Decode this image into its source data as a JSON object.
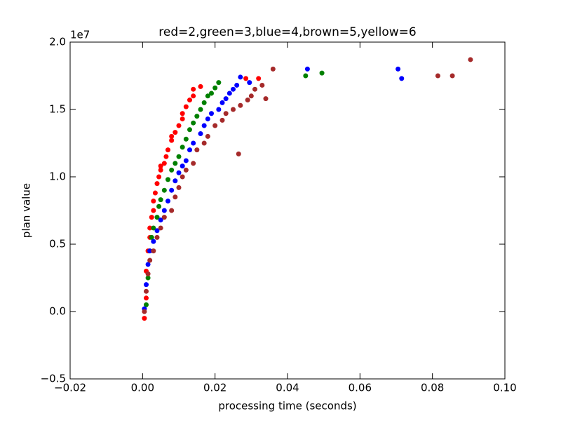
{
  "chart_data": {
    "type": "scatter",
    "title": "red=2,green=3,blue=4,brown=5,yellow=6",
    "x_label": "processing time (seconds)",
    "y_label": "plan value",
    "y_offset_label": "1e7",
    "xlim": [
      -0.02,
      0.1
    ],
    "ylim": [
      -0.5,
      2.0
    ],
    "xticks": [
      {
        "value": -0.02,
        "label": "−0.02"
      },
      {
        "value": 0,
        "label": "0.00"
      },
      0.02,
      0.04,
      0.06,
      0.08,
      {
        "value": 0.1,
        "label": "0.10"
      }
    ],
    "yticks": [
      {
        "value": -0.5,
        "label": "−0.5"
      },
      {
        "value": 0,
        "label": "0.0"
      },
      0.5,
      {
        "value": 1,
        "label": "1.0"
      },
      1.5,
      {
        "value": 2,
        "label": "2.0"
      }
    ],
    "series": [
      {
        "color": "#ff0000",
        "x": [
          0.0005,
          0.001,
          0.001,
          0.0015,
          0.002,
          0.002,
          0.0025,
          0.003,
          0.003,
          0.0035,
          0.004,
          0.0045,
          0.005,
          0.005,
          0.006,
          0.0065,
          0.007,
          0.008,
          0.008,
          0.009,
          0.01,
          0.011,
          0.011,
          0.012,
          0.013,
          0.014,
          0.014,
          0.016,
          0.0285,
          0.032
        ],
        "values": [
          -0.05,
          0.1,
          0.3,
          0.45,
          0.55,
          0.62,
          0.7,
          0.75,
          0.82,
          0.88,
          0.95,
          1.0,
          1.05,
          1.08,
          1.1,
          1.15,
          1.2,
          1.27,
          1.3,
          1.33,
          1.38,
          1.43,
          1.47,
          1.52,
          1.57,
          1.6,
          1.65,
          1.67,
          1.73,
          1.73
        ]
      },
      {
        "color": "#008000",
        "x": [
          0.001,
          0.0015,
          0.002,
          0.0025,
          0.003,
          0.004,
          0.0045,
          0.005,
          0.006,
          0.007,
          0.008,
          0.009,
          0.01,
          0.011,
          0.012,
          0.013,
          0.014,
          0.015,
          0.016,
          0.017,
          0.018,
          0.019,
          0.02,
          0.021,
          0.045,
          0.0495
        ],
        "values": [
          0.05,
          0.25,
          0.45,
          0.55,
          0.62,
          0.7,
          0.78,
          0.83,
          0.9,
          0.98,
          1.05,
          1.1,
          1.15,
          1.22,
          1.28,
          1.35,
          1.4,
          1.45,
          1.5,
          1.55,
          1.6,
          1.62,
          1.66,
          1.7,
          1.75,
          1.77
        ]
      },
      {
        "color": "#0000ff",
        "x": [
          0.0005,
          0.001,
          0.0015,
          0.002,
          0.003,
          0.004,
          0.005,
          0.006,
          0.007,
          0.008,
          0.009,
          0.01,
          0.011,
          0.012,
          0.013,
          0.014,
          0.016,
          0.017,
          0.018,
          0.019,
          0.021,
          0.022,
          0.023,
          0.024,
          0.025,
          0.026,
          0.027,
          0.0295,
          0.0455,
          0.0705,
          0.0715
        ],
        "values": [
          0.02,
          0.2,
          0.35,
          0.45,
          0.52,
          0.6,
          0.68,
          0.75,
          0.82,
          0.9,
          0.97,
          1.03,
          1.08,
          1.12,
          1.2,
          1.25,
          1.32,
          1.38,
          1.43,
          1.47,
          1.5,
          1.55,
          1.58,
          1.62,
          1.65,
          1.68,
          1.74,
          1.7,
          1.8,
          1.8,
          1.73
        ]
      },
      {
        "color": "#a52a2a",
        "x": [
          0.0005,
          0.001,
          0.0015,
          0.002,
          0.003,
          0.004,
          0.005,
          0.006,
          0.008,
          0.009,
          0.01,
          0.011,
          0.012,
          0.014,
          0.015,
          0.017,
          0.018,
          0.02,
          0.022,
          0.023,
          0.025,
          0.027,
          0.0265,
          0.029,
          0.03,
          0.031,
          0.033,
          0.034,
          0.036,
          0.0815,
          0.0855,
          0.0905
        ],
        "values": [
          0.0,
          0.15,
          0.28,
          0.38,
          0.45,
          0.55,
          0.62,
          0.7,
          0.75,
          0.85,
          0.92,
          1.0,
          1.05,
          1.1,
          1.2,
          1.25,
          1.3,
          1.38,
          1.42,
          1.47,
          1.5,
          1.53,
          1.17,
          1.57,
          1.6,
          1.65,
          1.68,
          1.58,
          1.8,
          1.75,
          1.75,
          1.87
        ]
      }
    ]
  }
}
